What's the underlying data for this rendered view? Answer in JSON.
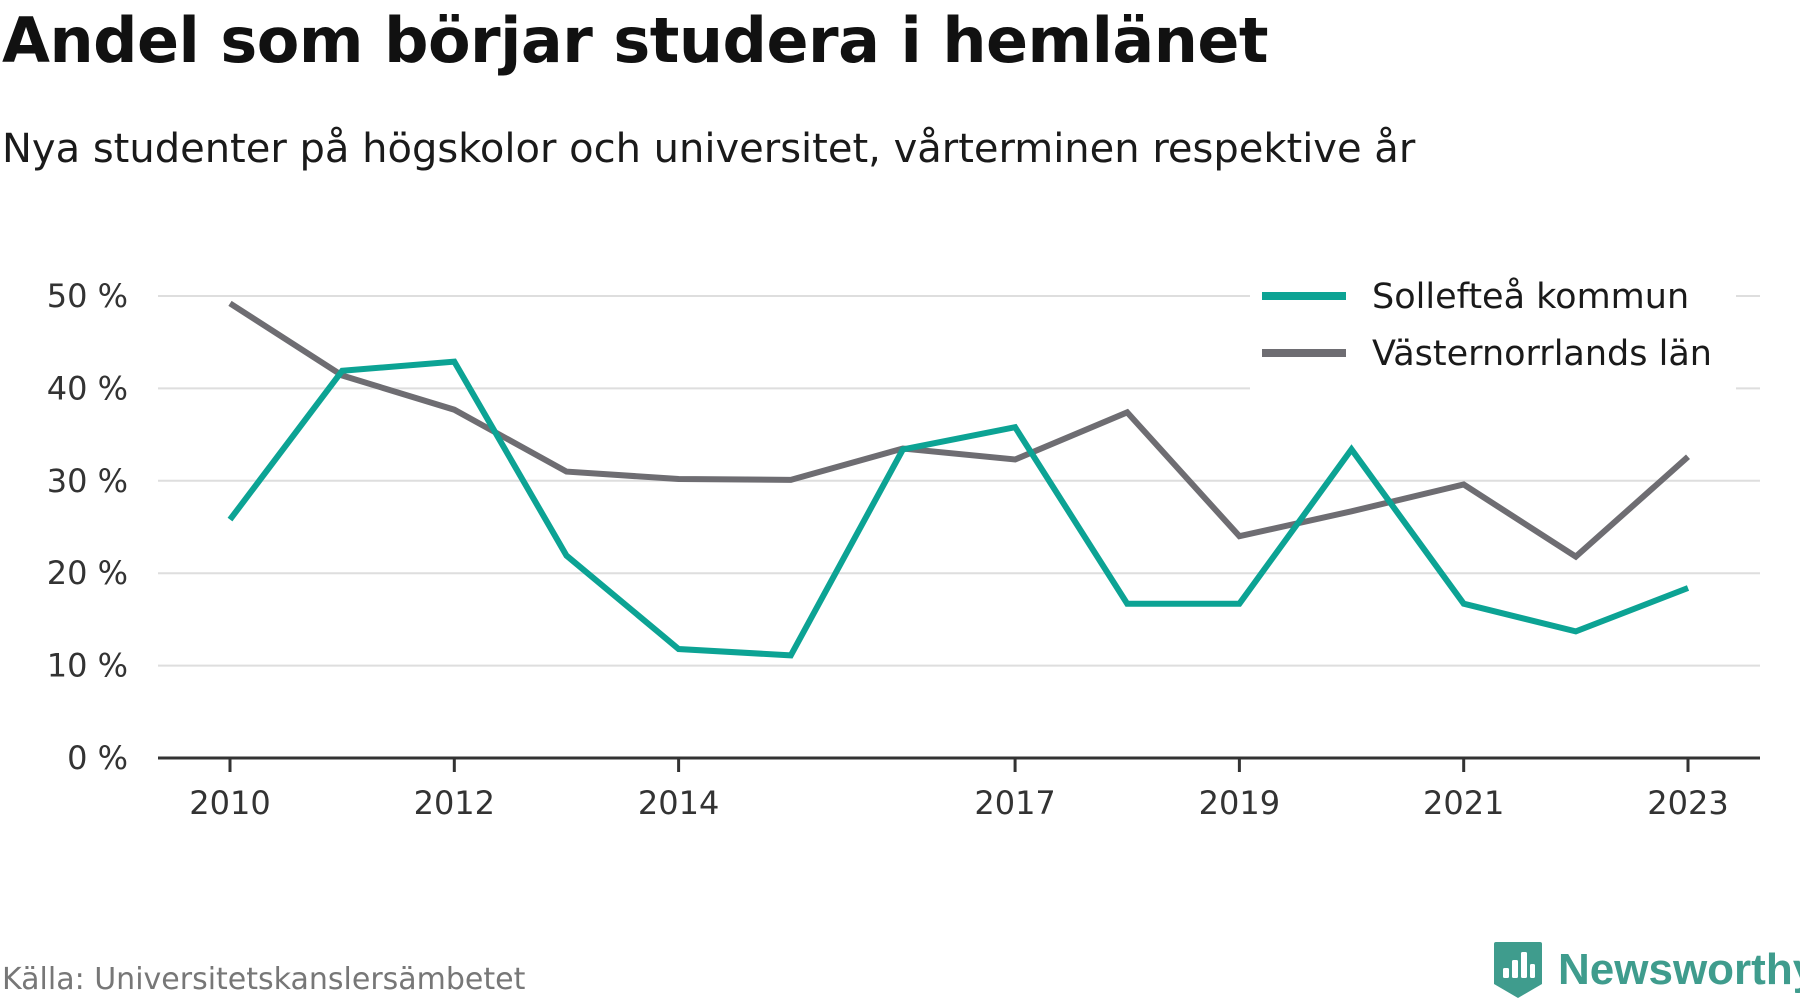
{
  "chart_data": {
    "type": "line",
    "title": "Andel som börjar studera i hemlänet",
    "subtitle": "Nya studenter på högskolor och universitet, vårterminen respektive år",
    "x": [
      2010,
      2011,
      2012,
      2013,
      2014,
      2015,
      2016,
      2017,
      2018,
      2019,
      2020,
      2021,
      2022,
      2023
    ],
    "x_tick_values": [
      2010,
      2012,
      2014,
      2017,
      2019,
      2021,
      2023
    ],
    "x_tick_labels": [
      "2010",
      "2012",
      "2014",
      "2017",
      "2019",
      "2021",
      "2023"
    ],
    "ylim": [
      0,
      50
    ],
    "y_tick_values": [
      0,
      10,
      20,
      30,
      40,
      50
    ],
    "y_tick_labels": [
      "0 %",
      "10 %",
      "20 %",
      "30 %",
      "40 %",
      "50 %"
    ],
    "grid": true,
    "legend_position": "top-right",
    "series": [
      {
        "name": "Sollefteå kommun",
        "color": "#0ca394",
        "values": [
          25.8,
          41.9,
          42.9,
          21.9,
          11.8,
          11.1,
          33.4,
          35.8,
          16.7,
          16.7,
          33.4,
          16.7,
          13.7,
          18.4
        ]
      },
      {
        "name": "Västernorrlands län",
        "color": "#6e6d72",
        "values": [
          49.2,
          41.4,
          37.7,
          31.0,
          30.2,
          30.1,
          33.5,
          32.3,
          37.4,
          24.0,
          26.7,
          29.6,
          21.8,
          32.6
        ]
      }
    ]
  },
  "footer": {
    "source": "Källa: Universitetskanslersämbetet",
    "brand": "Newsworthy",
    "brand_color": "#3f9c8d",
    "brand_icon": "bar-chart-badge-icon"
  }
}
